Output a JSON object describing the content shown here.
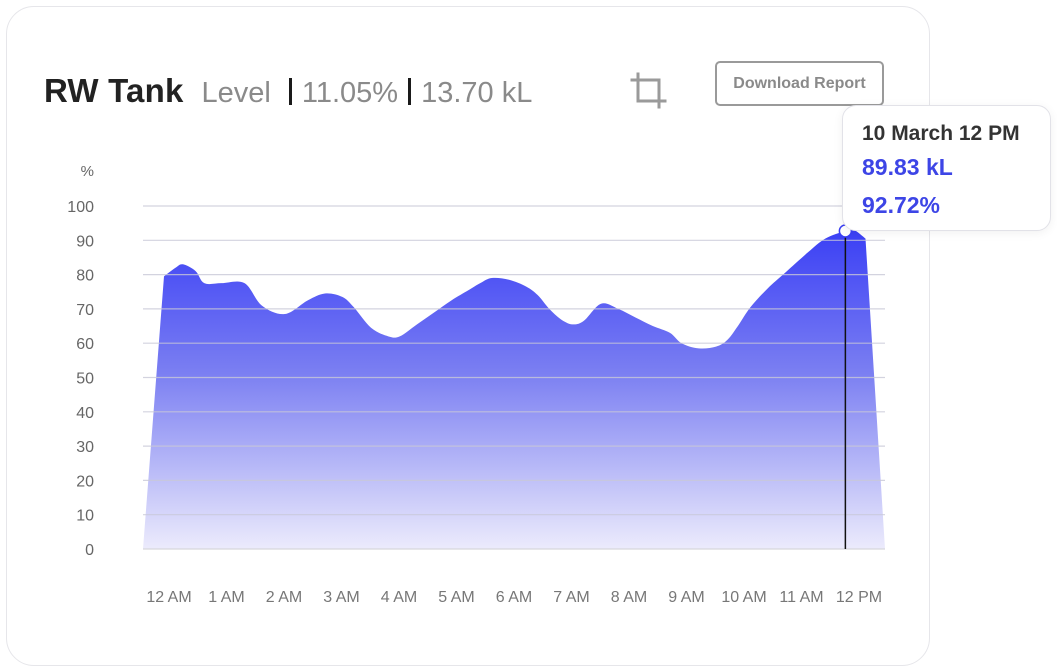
{
  "header": {
    "title": "RW Tank",
    "metric_label": "Level",
    "percent": "11.05%",
    "volume": "13.70 kL"
  },
  "toolbar": {
    "crop_icon": "crop-icon",
    "download_label": "Download Report"
  },
  "tooltip": {
    "date": "10 March 12 PM",
    "volume": "89.83 kL",
    "percent": "92.72%"
  },
  "chart_data": {
    "type": "area",
    "ylabel": "%",
    "ylim": [
      0,
      100
    ],
    "yticks": [
      0,
      10,
      20,
      30,
      40,
      50,
      60,
      70,
      80,
      90,
      100
    ],
    "xticks": [
      "12 AM",
      "1 AM",
      "2 AM",
      "3 AM",
      "4 AM",
      "5 AM",
      "6 AM",
      "7 AM",
      "8 AM",
      "9 AM",
      "10 AM",
      "11 AM",
      "12 PM"
    ],
    "grid": true,
    "color_top": "#3a3ff5",
    "color_bottom": "#ecebfc",
    "series": [
      {
        "x": [
          0,
          0.2,
          0.33,
          0.55,
          0.7,
          1.0,
          1.4,
          1.7,
          2.1,
          2.5,
          2.8,
          3.1,
          3.3,
          3.6,
          3.9,
          4.1,
          4.4,
          4.7,
          5.0,
          5.3,
          5.5,
          5.7,
          6.0,
          6.3,
          6.5,
          6.7,
          6.9,
          7.1,
          7.3,
          7.6,
          7.9,
          8.2,
          8.5,
          8.8,
          9.0,
          9.3,
          9.6,
          9.8,
          10.0,
          10.2,
          10.5,
          10.8,
          11.2,
          11.5,
          11.85,
          12.0,
          12.2
        ],
        "y": [
          79.5,
          82,
          83,
          81,
          77.5,
          77.5,
          77.5,
          71,
          68.5,
          72.5,
          74.5,
          73.5,
          70.5,
          64.5,
          62,
          62,
          65.5,
          69,
          72.5,
          75.5,
          77.5,
          79,
          78.5,
          76.5,
          74,
          70,
          67,
          65.5,
          66.5,
          71.5,
          70,
          67.5,
          65,
          63,
          60,
          58.5,
          59,
          61,
          65.5,
          70.5,
          76,
          80.5,
          86.5,
          90.5,
          92.72,
          93,
          90.5
        ]
      }
    ],
    "highlight": {
      "x": 11.85,
      "y": 92.72
    }
  }
}
